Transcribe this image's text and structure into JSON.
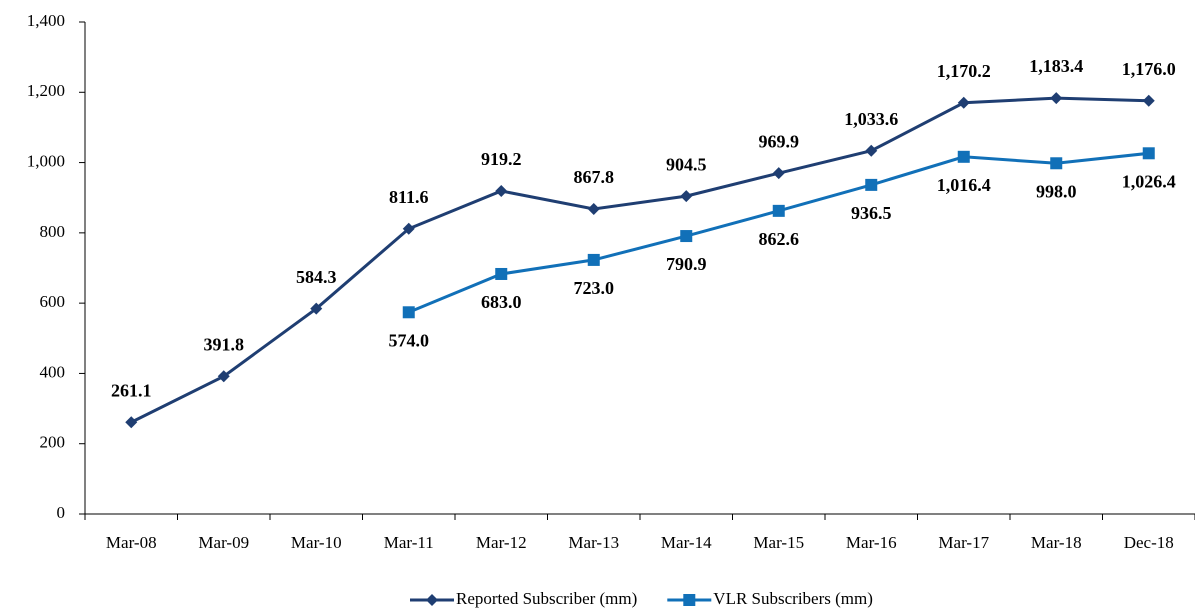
{
  "chart_data": {
    "type": "line",
    "categories": [
      "Mar-08",
      "Mar-09",
      "Mar-10",
      "Mar-11",
      "Mar-12",
      "Mar-13",
      "Mar-14",
      "Mar-15",
      "Mar-16",
      "Mar-17",
      "Mar-18",
      "Dec-18"
    ],
    "series": [
      {
        "name": "Reported Subscriber (mm)",
        "color": "#1f3e72",
        "marker": "diamond",
        "values": [
          261.1,
          391.8,
          584.3,
          811.6,
          919.2,
          867.8,
          904.5,
          969.9,
          1033.6,
          1170.2,
          1183.4,
          1176.0
        ],
        "value_labels": [
          "261.1",
          "391.8",
          "584.3",
          "811.6",
          "919.2",
          "867.8",
          "904.5",
          "969.9",
          "1,033.6",
          "1,170.2",
          "1,183.4",
          "1,176.0"
        ]
      },
      {
        "name": "VLR Subscribers (mm)",
        "color": "#1170b8",
        "marker": "square",
        "values": [
          null,
          null,
          null,
          574.0,
          683.0,
          723.0,
          790.9,
          862.6,
          936.5,
          1016.4,
          998.0,
          1026.4
        ],
        "value_labels": [
          null,
          null,
          null,
          "574.0",
          "683.0",
          "723.0",
          "790.9",
          "862.6",
          "936.5",
          "1,016.4",
          "998.0",
          "1,026.4"
        ]
      }
    ],
    "ylim": [
      0,
      1400
    ],
    "yticks": [
      0,
      200,
      400,
      600,
      800,
      {
        "value": 1000,
        "label": "1,000"
      },
      {
        "value": 1200,
        "label": "1,200"
      },
      {
        "value": 1400,
        "label": "1,400"
      }
    ],
    "grid": false,
    "legend": "bottom"
  }
}
